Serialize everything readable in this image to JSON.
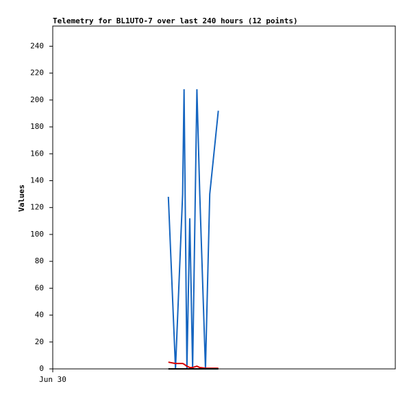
{
  "chart_data": {
    "type": "line",
    "title": "Telemetry for BL1UTO-7 over last 240 hours (12 points)",
    "y_label": "Values",
    "x": [
      81,
      86,
      91,
      92,
      94,
      96,
      98,
      101,
      103,
      107,
      110,
      116
    ],
    "xlim": [
      0,
      240
    ],
    "xticks": [
      {
        "value": 0,
        "label": "Jun 30"
      }
    ],
    "ylim": [
      0,
      255
    ],
    "yticks": [
      0,
      20,
      40,
      60,
      80,
      100,
      120,
      140,
      160,
      180,
      200,
      220,
      240
    ],
    "series": [
      {
        "color": "#1565c0",
        "values": [
          128,
          0,
          130,
          208,
          0,
          112,
          0,
          208,
          130,
          0,
          130,
          192
        ]
      },
      {
        "color": "#d50000",
        "values": [
          5,
          4,
          4,
          3.5,
          2,
          1,
          1,
          2,
          1,
          0.5,
          0.5,
          0.5
        ]
      },
      {
        "color": "#000000",
        "values": [
          0,
          0,
          0,
          0,
          0,
          0,
          0,
          0,
          0,
          0,
          0,
          0
        ]
      }
    ]
  }
}
